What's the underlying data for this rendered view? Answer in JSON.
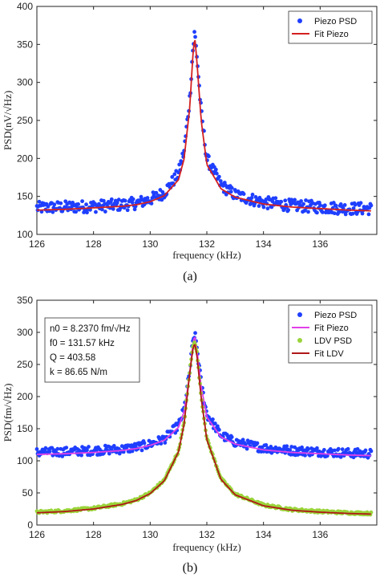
{
  "figure": {
    "caption_a": "(a)",
    "caption_b": "(b)"
  },
  "colors": {
    "piezo_psd": "#1f3fff",
    "fit_piezo_a": "#d42020",
    "fit_piezo_b": "#e040e8",
    "ldv_psd": "#9ad43a",
    "fit_ldv": "#b01818"
  },
  "chart_data": [
    {
      "id": "a",
      "type": "line",
      "xlabel": "frequency (kHz)",
      "ylabel": "PSD(nV/√Hz)",
      "xlim": [
        126,
        138
      ],
      "ylim": [
        100,
        400
      ],
      "xticks": [
        126,
        128,
        130,
        132,
        134,
        136
      ],
      "yticks": [
        100,
        150,
        200,
        250,
        300,
        350,
        400
      ],
      "grid": false,
      "legend_position": "top-right",
      "legend": [
        "Piezo PSD",
        "Fit Piezo"
      ],
      "series": [
        {
          "name": "Piezo PSD",
          "style": "markers",
          "color": "#1f3fff",
          "x": [
            126,
            127,
            128,
            129,
            129.5,
            130,
            130.5,
            131,
            131.2,
            131.4,
            131.5,
            131.57,
            131.65,
            131.8,
            132,
            132.5,
            133,
            134,
            135,
            136,
            137,
            137.8
          ],
          "y": [
            135,
            136,
            137,
            139,
            141,
            146,
            155,
            180,
            210,
            280,
            340,
            366,
            335,
            260,
            200,
            165,
            152,
            142,
            138,
            136,
            134,
            134
          ],
          "noise": 8
        },
        {
          "name": "Fit Piezo",
          "style": "line",
          "color": "#d42020",
          "x": [
            126,
            127,
            128,
            129,
            129.5,
            130,
            130.5,
            131,
            131.2,
            131.4,
            131.5,
            131.57,
            131.65,
            131.8,
            132,
            132.5,
            133,
            134,
            135,
            136,
            137,
            137.8
          ],
          "y": [
            132,
            133,
            135,
            137,
            139,
            143,
            151,
            172,
            200,
            268,
            332,
            362,
            328,
            250,
            192,
            160,
            149,
            140,
            136,
            134,
            132,
            131
          ]
        }
      ]
    },
    {
      "id": "b",
      "type": "line",
      "xlabel": "frequency (kHz)",
      "ylabel": "PSD(fm/√Hz)",
      "xlim": [
        126,
        138
      ],
      "ylim": [
        0,
        350
      ],
      "xticks": [
        126,
        128,
        130,
        132,
        134,
        136
      ],
      "yticks": [
        0,
        50,
        100,
        150,
        200,
        250,
        300,
        350
      ],
      "grid": false,
      "legend_position": "top-right",
      "legend": [
        "Piezo PSD",
        "Fit Piezo",
        "LDV PSD",
        "Fit LDV"
      ],
      "annotation": [
        "n0 = 8.2370 fm/√Hz",
        "f0 = 131.57 kHz",
        "Q = 403.58",
        "k = 86.65 N/m"
      ],
      "series": [
        {
          "name": "Piezo PSD",
          "style": "markers",
          "color": "#1f3fff",
          "x": [
            126,
            127,
            128,
            129,
            129.5,
            130,
            130.5,
            131,
            131.2,
            131.4,
            131.5,
            131.57,
            131.65,
            131.8,
            132,
            132.5,
            133,
            134,
            135,
            136,
            137,
            137.8
          ],
          "y": [
            113,
            114,
            116,
            118,
            121,
            126,
            134,
            155,
            180,
            240,
            282,
            298,
            276,
            220,
            172,
            140,
            129,
            120,
            116,
            114,
            112,
            111
          ],
          "noise": 7
        },
        {
          "name": "Fit Piezo",
          "style": "line",
          "color": "#e040e8",
          "x": [
            126,
            127,
            128,
            129,
            129.5,
            130,
            130.5,
            131,
            131.2,
            131.4,
            131.5,
            131.57,
            131.65,
            131.8,
            132,
            132.5,
            133,
            134,
            135,
            136,
            137,
            137.8
          ],
          "y": [
            110,
            111,
            113,
            116,
            119,
            124,
            132,
            152,
            177,
            236,
            280,
            296,
            274,
            216,
            168,
            137,
            126,
            117,
            113,
            111,
            109,
            108
          ]
        },
        {
          "name": "LDV PSD",
          "style": "markers",
          "color": "#9ad43a",
          "x": [
            126,
            127,
            128,
            129,
            129.5,
            130,
            130.5,
            131,
            131.2,
            131.4,
            131.5,
            131.57,
            131.65,
            131.8,
            132,
            132.5,
            133,
            134,
            135,
            136,
            137,
            137.8
          ],
          "y": [
            20,
            22,
            26,
            33,
            39,
            50,
            70,
            115,
            160,
            240,
            276,
            287,
            268,
            200,
            135,
            72,
            48,
            31,
            24,
            21,
            19,
            18
          ],
          "noise": 2
        },
        {
          "name": "Fit LDV",
          "style": "line",
          "color": "#b01818",
          "x": [
            126,
            127,
            128,
            129,
            129.5,
            130,
            130.5,
            131,
            131.2,
            131.4,
            131.5,
            131.57,
            131.65,
            131.8,
            132,
            132.5,
            133,
            134,
            135,
            136,
            137,
            137.8
          ],
          "y": [
            19,
            21,
            25,
            32,
            38,
            49,
            69,
            114,
            158,
            238,
            272,
            284,
            265,
            198,
            133,
            71,
            47,
            30,
            23,
            20,
            18,
            17
          ]
        }
      ]
    }
  ]
}
